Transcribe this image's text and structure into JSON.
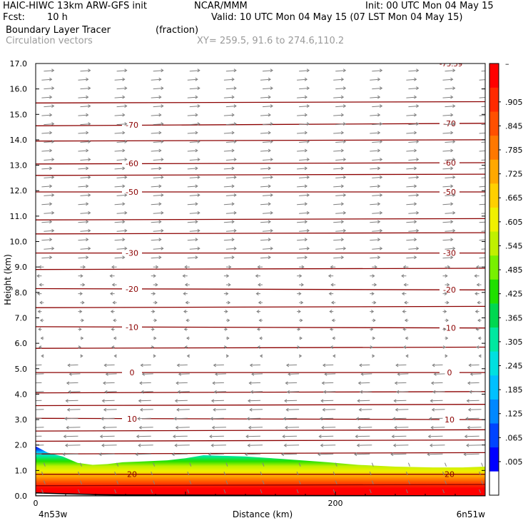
{
  "header": {
    "model": "HAIC-HIWC 13km ARW-GFS init",
    "org": "NCAR/MMM",
    "init": "Init: 00 UTC Mon 04 May 15",
    "fcst_label": "Fcst:",
    "fcst_value": "10 h",
    "valid": "Valid: 10 UTC Mon 04 May 15 (07 LST Mon 04 May 15)",
    "field": "Boundary Layer Tracer",
    "field_units": "(fraction)",
    "vectors": "Circulation vectors",
    "xy": "XY= 259.5, 91.6 to 274.6,110.2"
  },
  "chart_data": {
    "type": "area",
    "ylabel": "Height (km)",
    "xlabel": "Distance (km)",
    "ylim": [
      0,
      17
    ],
    "xlim": [
      0,
      300
    ],
    "yticks": [
      "0.0",
      "1.0",
      "2.0",
      "3.0",
      "4.0",
      "5.0",
      "6.0",
      "7.0",
      "8.0",
      "9.0",
      "10.0",
      "11.0",
      "12.0",
      "13.0",
      "14.0",
      "15.0",
      "16.0",
      "17.0"
    ],
    "xticks": [
      {
        "value": 0,
        "label": "0"
      },
      {
        "value": 200,
        "label": "200"
      }
    ],
    "x_endpoints": {
      "left": "4n53w",
      "right": "6n51w"
    },
    "tracer_top_km": [
      [
        0,
        1.95
      ],
      [
        8,
        1.7
      ],
      [
        18,
        1.55
      ],
      [
        28,
        1.3
      ],
      [
        38,
        1.22
      ],
      [
        48,
        1.25
      ],
      [
        58,
        1.32
      ],
      [
        70,
        1.35
      ],
      [
        88,
        1.4
      ],
      [
        100,
        1.48
      ],
      [
        112,
        1.6
      ],
      [
        140,
        1.55
      ],
      [
        165,
        1.45
      ],
      [
        195,
        1.32
      ],
      [
        215,
        1.22
      ],
      [
        240,
        1.15
      ],
      [
        265,
        1.12
      ],
      [
        285,
        1.12
      ],
      [
        300,
        1.15
      ]
    ],
    "terrain_km": [
      [
        0,
        0.12
      ],
      [
        20,
        0.08
      ],
      [
        40,
        0.05
      ],
      [
        60,
        0.04
      ],
      [
        100,
        0.03
      ],
      [
        150,
        0.02
      ],
      [
        300,
        0.0
      ]
    ],
    "temperature_contours": [
      {
        "value": "-70",
        "heights_km": [
          14.55,
          14.65
        ]
      },
      {
        "value": "-60",
        "heights_km": [
          13.05,
          13.1
        ]
      },
      {
        "value": "-50",
        "heights_km": [
          11.95,
          11.95
        ]
      },
      {
        "value": "-30",
        "heights_km": [
          9.55,
          9.55
        ]
      },
      {
        "value": "-20",
        "heights_km": [
          8.15,
          8.1
        ]
      },
      {
        "value": "-10",
        "heights_km": [
          6.65,
          6.6
        ]
      },
      {
        "value": "0",
        "heights_km": [
          4.85,
          4.85
        ]
      },
      {
        "value": "10",
        "heights_km": [
          3.05,
          3.0
        ]
      },
      {
        "value": "20",
        "heights_km": [
          0.85,
          0.85
        ]
      }
    ],
    "unlabeled_contour_heights_km": [
      0.4,
      1.65,
      2.15,
      2.55,
      3.55,
      4.05,
      5.8,
      7.4,
      8.9,
      10.3,
      10.85,
      12.6,
      13.95,
      15.45
    ],
    "top_contour_label": "-75.59",
    "colorbar_labels": [
      ".905",
      ".845",
      ".785",
      ".725",
      ".665",
      ".605",
      ".545",
      ".485",
      ".425",
      ".365",
      ".305",
      ".245",
      ".185",
      ".125",
      ".065",
      ".005"
    ],
    "colorbar_colors": [
      "#ffffff",
      "#0000ff",
      "#0044ff",
      "#0088ff",
      "#00c0ff",
      "#00e0e0",
      "#00e8a0",
      "#00d850",
      "#20e000",
      "#78f000",
      "#c0f000",
      "#f0f000",
      "#ffd000",
      "#ffa800",
      "#ff7800",
      "#ff5000",
      "#ff2a00",
      "#ff0000"
    ],
    "colorbar_top_label": "–",
    "contour_color": "#8b0000",
    "vector_color": "#808080"
  }
}
